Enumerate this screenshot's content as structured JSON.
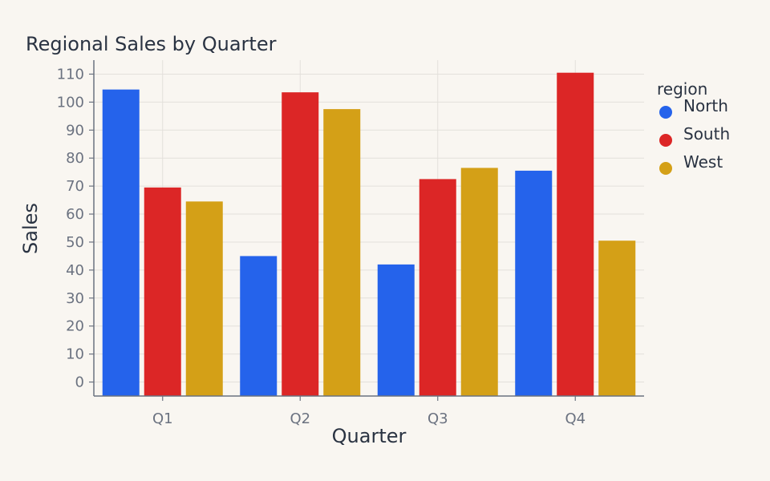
{
  "chart_data": {
    "type": "bar",
    "title": "Regional Sales by Quarter",
    "xlabel": "Quarter",
    "ylabel": "Sales",
    "categories": [
      "Q1",
      "Q2",
      "Q3",
      "Q4"
    ],
    "series": [
      {
        "name": "North",
        "color": "#2563eb",
        "values": [
          104.5,
          45,
          42,
          75.5
        ]
      },
      {
        "name": "South",
        "color": "#dc2626",
        "values": [
          69.5,
          103.5,
          72.5,
          110.5
        ]
      },
      {
        "name": "West",
        "color": "#d4a017",
        "values": [
          64.5,
          97.5,
          76.5,
          50.5
        ]
      }
    ],
    "ylim": [
      -5,
      115
    ],
    "yticks": [
      0,
      10,
      20,
      30,
      40,
      50,
      60,
      70,
      80,
      90,
      100,
      110
    ],
    "legend": {
      "title": "region",
      "position": "top-right"
    },
    "grid": true
  }
}
